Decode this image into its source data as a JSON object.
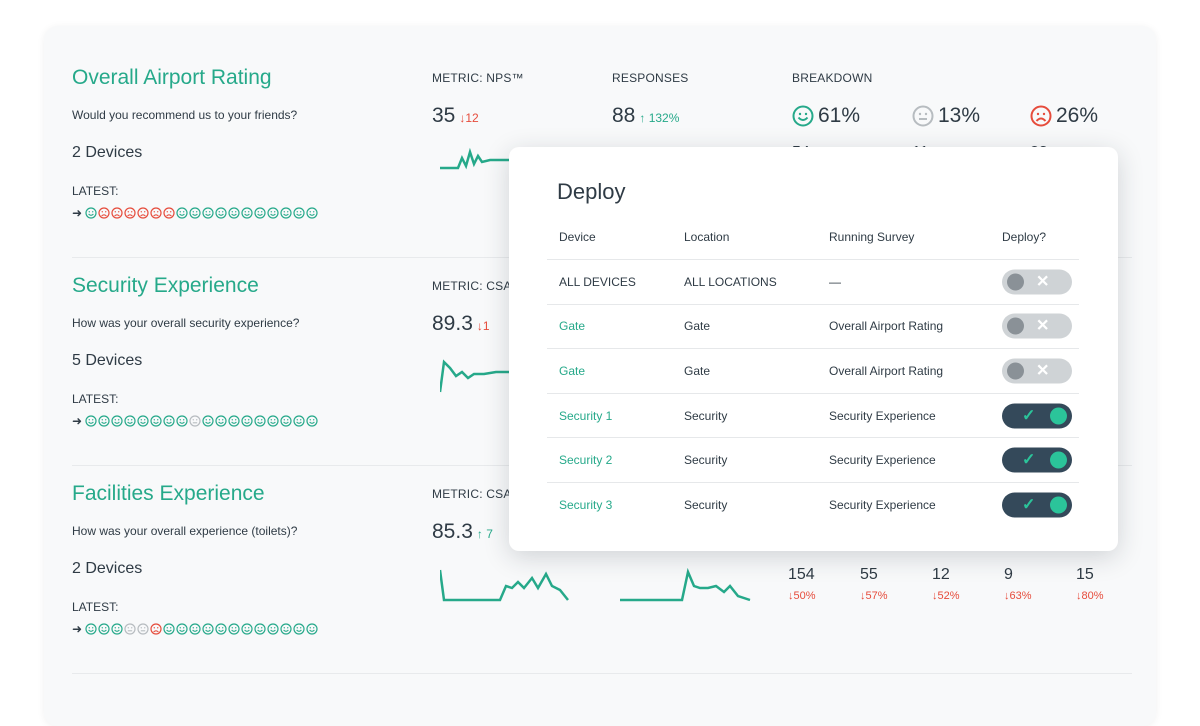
{
  "surveys": [
    {
      "title": "Overall Airport Rating",
      "question": "Would you recommend us to your friends?",
      "devices": "2 Devices",
      "latest_label": "LATEST:",
      "faces": [
        "h",
        "s",
        "s",
        "s",
        "s",
        "s",
        "s",
        "h",
        "h",
        "h",
        "h",
        "h",
        "h",
        "h",
        "h",
        "h",
        "h",
        "h"
      ],
      "metric_label": "METRIC: NPS™",
      "metric_value": "35",
      "metric_delta": "12",
      "metric_dir": "down",
      "responses_label": "RESPONSES",
      "responses_value": "88",
      "responses_delta": "132%",
      "responses_dir": "up",
      "breakdown_label": "BREAKDOWN",
      "breakdown": [
        {
          "icon": "happy-face-icon",
          "value": "61%",
          "color": "#26a98a"
        },
        {
          "icon": "neutral-face-icon",
          "value": "13%",
          "color": "#b7bcc0"
        },
        {
          "icon": "sad-face-icon",
          "value": "26%",
          "color": "#e64c3c"
        }
      ]
    },
    {
      "title": "Security Experience",
      "question": "How was your overall security experience?",
      "devices": "5 Devices",
      "latest_label": "LATEST:",
      "faces": [
        "h",
        "h",
        "h",
        "h",
        "h",
        "h",
        "h",
        "h",
        "n",
        "h",
        "h",
        "h",
        "h",
        "h",
        "h",
        "h",
        "h",
        "h"
      ],
      "metric_label": "METRIC: CSA",
      "metric_value": "89.3",
      "metric_delta": "1",
      "metric_dir": "down"
    },
    {
      "title": "Facilities Experience",
      "question": "How was your overall experience (toilets)?",
      "devices": "2 Devices",
      "latest_label": "LATEST:",
      "faces": [
        "h",
        "h",
        "h",
        "n",
        "n",
        "s",
        "h",
        "h",
        "h",
        "h",
        "h",
        "h",
        "h",
        "h",
        "h",
        "h",
        "h",
        "h"
      ],
      "metric_label": "METRIC: CSA",
      "metric_value": "85.3",
      "metric_delta": "7",
      "metric_dir": "up",
      "counts": [
        {
          "n": "154",
          "p": "50%"
        },
        {
          "n": "55",
          "p": "57%"
        },
        {
          "n": "12",
          "p": "52%"
        },
        {
          "n": "9",
          "p": "63%"
        },
        {
          "n": "15",
          "p": "80%"
        }
      ]
    }
  ],
  "peek": [
    "54",
    "11",
    "23"
  ],
  "modal": {
    "title": "Deploy",
    "headers": [
      "Device",
      "Location",
      "Running Survey",
      "Deploy?"
    ],
    "rows": [
      {
        "device": "ALL DEVICES",
        "location": "ALL LOCATIONS",
        "survey": "—",
        "on": false,
        "link": false
      },
      {
        "device": "Gate",
        "location": "Gate",
        "survey": "Overall Airport Rating",
        "on": false,
        "link": true
      },
      {
        "device": "Gate",
        "location": "Gate",
        "survey": "Overall Airport Rating",
        "on": false,
        "link": true
      },
      {
        "device": "Security 1",
        "location": "Security",
        "survey": "Security Experience",
        "on": true,
        "link": true
      },
      {
        "device": "Security 2",
        "location": "Security",
        "survey": "Security Experience",
        "on": true,
        "link": true
      },
      {
        "device": "Security 3",
        "location": "Security",
        "survey": "Security Experience",
        "on": true,
        "link": true
      }
    ]
  },
  "colors": {
    "accent": "#26a98a",
    "negative": "#e64c3c",
    "toggle_on": "#34495a"
  }
}
